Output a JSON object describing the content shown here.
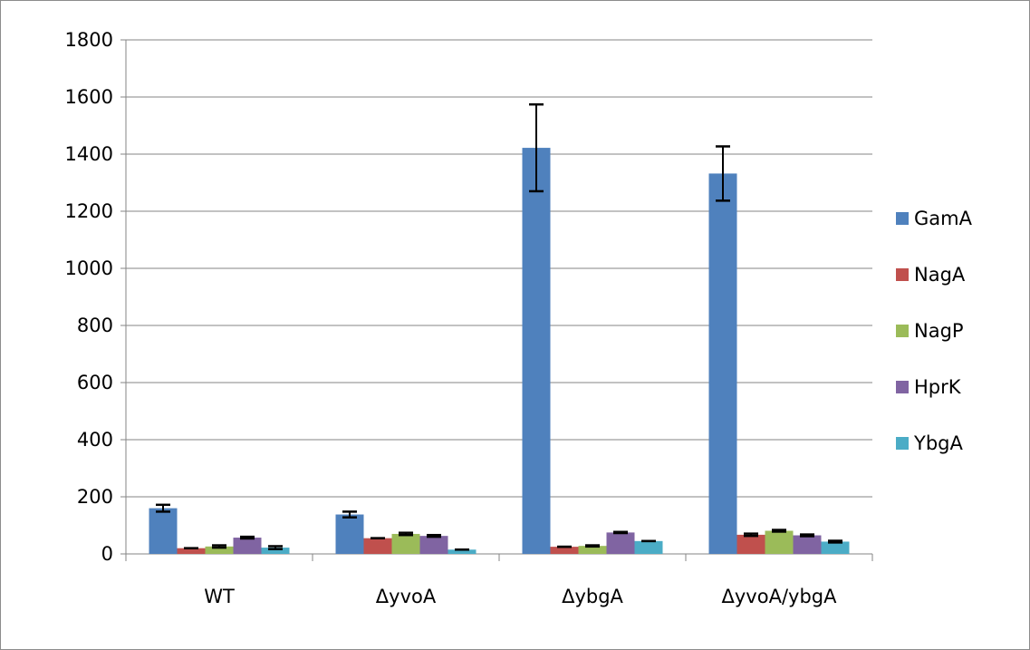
{
  "chart_data": {
    "type": "bar",
    "title": "",
    "xlabel": "",
    "ylabel": "",
    "ylim": [
      0,
      1800
    ],
    "yticks": [
      0,
      200,
      400,
      600,
      800,
      1000,
      1200,
      1400,
      1600,
      1800
    ],
    "grid": "horizontal",
    "legend_position": "right",
    "categories": [
      "WT",
      "ΔyvoA",
      "ΔybgA",
      "ΔyvoA/ybgA"
    ],
    "series": [
      {
        "name": "GamA",
        "color": "#4F81BD",
        "values": [
          160,
          138,
          1422,
          1332
        ],
        "errors": [
          12,
          10,
          152,
          95
        ]
      },
      {
        "name": "NagA",
        "color": "#C0504D",
        "values": [
          20,
          55,
          25,
          67
        ],
        "errors": [
          0,
          0,
          0,
          4
        ]
      },
      {
        "name": "NagP",
        "color": "#9BBB59",
        "values": [
          26,
          70,
          28,
          81
        ],
        "errors": [
          4,
          4,
          2,
          3
        ]
      },
      {
        "name": "HprK",
        "color": "#8064A2",
        "values": [
          57,
          63,
          75,
          65
        ],
        "errors": [
          3,
          3,
          2,
          3
        ]
      },
      {
        "name": "YbgA",
        "color": "#4BACC6",
        "values": [
          22,
          15,
          45,
          43
        ],
        "errors": [
          5,
          0,
          0,
          3
        ]
      }
    ]
  }
}
